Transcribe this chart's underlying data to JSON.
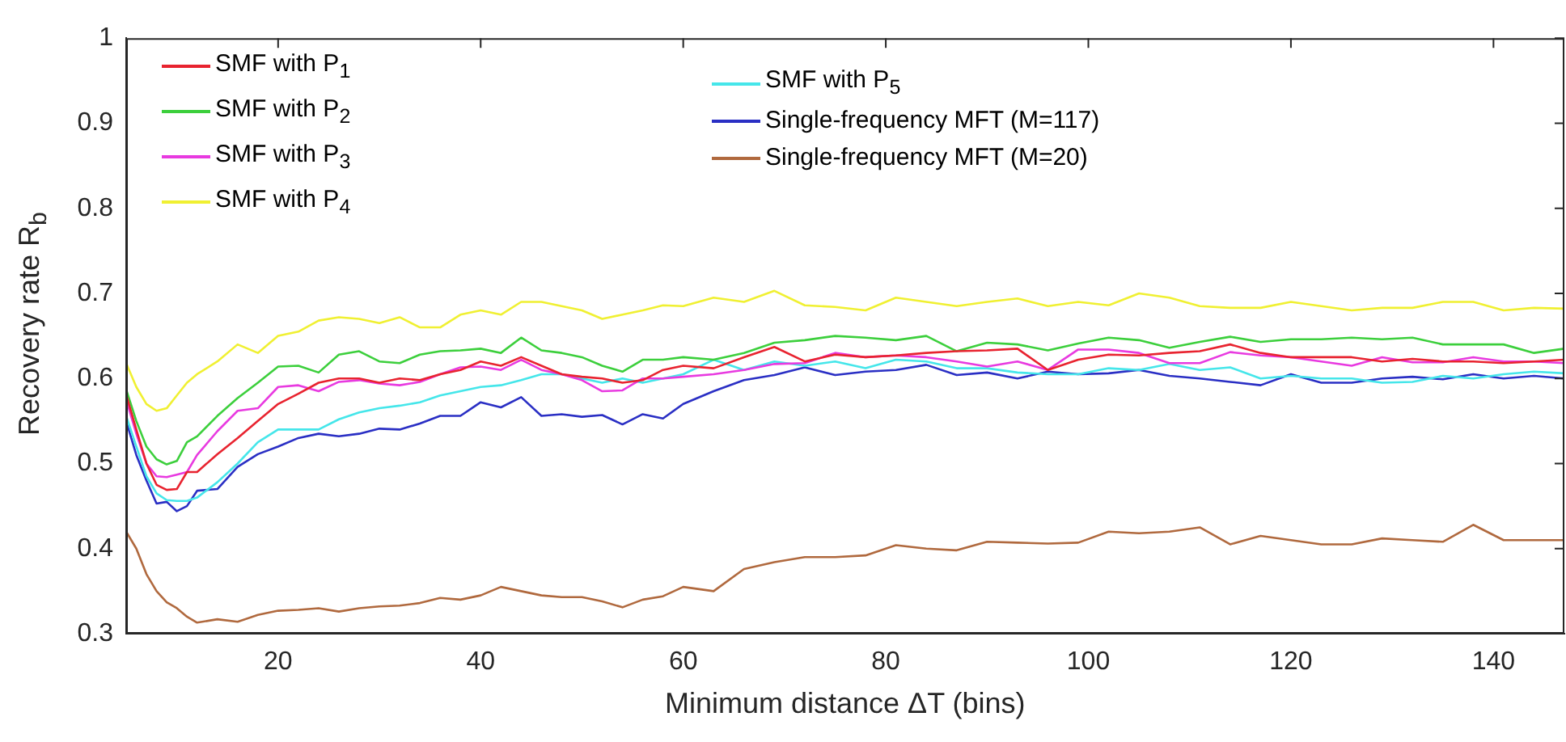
{
  "chart_data": {
    "type": "line",
    "xlabel": "Minimum distance ΔT (bins)",
    "ylabel": "Recovery rate R$_{b}$",
    "x": [
      5,
      6,
      7,
      8,
      9,
      10,
      11,
      12,
      14,
      16,
      18,
      20,
      22,
      24,
      26,
      28,
      30,
      32,
      34,
      36,
      38,
      40,
      42,
      44,
      46,
      48,
      50,
      52,
      54,
      56,
      58,
      60,
      63,
      66,
      69,
      72,
      75,
      78,
      81,
      84,
      87,
      90,
      93,
      96,
      99,
      102,
      105,
      108,
      111,
      114,
      117,
      120,
      123,
      126,
      129,
      132,
      135,
      138,
      141,
      144,
      147
    ],
    "series": [
      {
        "name": "SMF with P$_{1}$",
        "color": "#e8232f",
        "values": [
          0.581,
          0.54,
          0.5,
          0.475,
          0.469,
          0.47,
          0.49,
          0.49,
          0.511,
          0.53,
          0.55,
          0.57,
          0.582,
          0.595,
          0.6,
          0.6,
          0.595,
          0.6,
          0.598,
          0.605,
          0.61,
          0.62,
          0.615,
          0.625,
          0.615,
          0.605,
          0.602,
          0.6,
          0.595,
          0.598,
          0.61,
          0.615,
          0.612,
          0.625,
          0.637,
          0.62,
          0.628,
          0.625,
          0.627,
          0.63,
          0.632,
          0.633,
          0.635,
          0.61,
          0.622,
          0.628,
          0.627,
          0.63,
          0.632,
          0.64,
          0.63,
          0.625,
          0.625,
          0.625,
          0.62,
          0.623,
          0.62,
          0.62,
          0.618,
          0.62,
          0.622
        ]
      },
      {
        "name": "SMF with P$_{2}$",
        "color": "#3ccf3c",
        "values": [
          0.587,
          0.55,
          0.52,
          0.505,
          0.499,
          0.503,
          0.525,
          0.532,
          0.556,
          0.577,
          0.595,
          0.614,
          0.615,
          0.607,
          0.628,
          0.632,
          0.62,
          0.618,
          0.628,
          0.632,
          0.633,
          0.635,
          0.63,
          0.648,
          0.633,
          0.63,
          0.625,
          0.615,
          0.608,
          0.622,
          0.622,
          0.625,
          0.622,
          0.63,
          0.642,
          0.645,
          0.65,
          0.648,
          0.645,
          0.65,
          0.632,
          0.642,
          0.64,
          0.633,
          0.641,
          0.648,
          0.645,
          0.636,
          0.643,
          0.649,
          0.643,
          0.646,
          0.646,
          0.648,
          0.646,
          0.648,
          0.64,
          0.64,
          0.64,
          0.63,
          0.635
        ]
      },
      {
        "name": "SMF with P$_{3}$",
        "color": "#e83ae0",
        "values": [
          0.575,
          0.535,
          0.5,
          0.485,
          0.484,
          0.487,
          0.49,
          0.51,
          0.538,
          0.562,
          0.565,
          0.59,
          0.592,
          0.585,
          0.596,
          0.598,
          0.594,
          0.592,
          0.596,
          0.605,
          0.613,
          0.614,
          0.61,
          0.622,
          0.61,
          0.605,
          0.598,
          0.585,
          0.586,
          0.6,
          0.6,
          0.602,
          0.605,
          0.61,
          0.617,
          0.618,
          0.63,
          0.625,
          0.627,
          0.625,
          0.62,
          0.614,
          0.62,
          0.61,
          0.634,
          0.634,
          0.63,
          0.618,
          0.618,
          0.631,
          0.627,
          0.625,
          0.62,
          0.615,
          0.625,
          0.619,
          0.619,
          0.625,
          0.62,
          0.62,
          0.618
        ]
      },
      {
        "name": "SMF with P$_{4}$",
        "color": "#f0f032",
        "values": [
          0.618,
          0.59,
          0.57,
          0.562,
          0.565,
          0.58,
          0.595,
          0.605,
          0.62,
          0.64,
          0.63,
          0.65,
          0.655,
          0.668,
          0.672,
          0.67,
          0.665,
          0.672,
          0.66,
          0.66,
          0.675,
          0.68,
          0.675,
          0.69,
          0.69,
          0.685,
          0.68,
          0.67,
          0.675,
          0.68,
          0.686,
          0.685,
          0.695,
          0.69,
          0.703,
          0.686,
          0.684,
          0.68,
          0.695,
          0.69,
          0.685,
          0.69,
          0.694,
          0.685,
          0.69,
          0.686,
          0.7,
          0.695,
          0.685,
          0.683,
          0.683,
          0.69,
          0.685,
          0.68,
          0.683,
          0.683,
          0.69,
          0.69,
          0.68,
          0.683,
          0.682
        ]
      },
      {
        "name": "SMF with P$_{5}$",
        "color": "#45e6ea",
        "values": [
          0.556,
          0.52,
          0.485,
          0.465,
          0.457,
          0.456,
          0.456,
          0.46,
          0.478,
          0.5,
          0.525,
          0.54,
          0.54,
          0.54,
          0.552,
          0.56,
          0.565,
          0.568,
          0.572,
          0.58,
          0.585,
          0.59,
          0.592,
          0.598,
          0.605,
          0.605,
          0.6,
          0.595,
          0.6,
          0.595,
          0.6,
          0.605,
          0.622,
          0.61,
          0.62,
          0.615,
          0.62,
          0.612,
          0.622,
          0.62,
          0.612,
          0.612,
          0.607,
          0.605,
          0.605,
          0.612,
          0.61,
          0.617,
          0.61,
          0.613,
          0.6,
          0.603,
          0.6,
          0.6,
          0.595,
          0.596,
          0.603,
          0.6,
          0.605,
          0.608,
          0.606
        ]
      },
      {
        "name": "Single-frequency MFT (M=117)",
        "color": "#2a2fc4",
        "values": [
          0.55,
          0.51,
          0.48,
          0.453,
          0.455,
          0.444,
          0.45,
          0.468,
          0.47,
          0.496,
          0.511,
          0.52,
          0.53,
          0.535,
          0.532,
          0.535,
          0.541,
          0.54,
          0.547,
          0.556,
          0.556,
          0.572,
          0.566,
          0.578,
          0.556,
          0.558,
          0.555,
          0.557,
          0.546,
          0.558,
          0.553,
          0.57,
          0.585,
          0.598,
          0.604,
          0.613,
          0.604,
          0.608,
          0.61,
          0.616,
          0.604,
          0.607,
          0.6,
          0.608,
          0.605,
          0.606,
          0.61,
          0.603,
          0.6,
          0.596,
          0.592,
          0.605,
          0.595,
          0.595,
          0.6,
          0.602,
          0.599,
          0.605,
          0.6,
          0.603,
          0.6
        ]
      },
      {
        "name": "Single-frequency MFT (M=20)",
        "color": "#b0693e",
        "values": [
          0.42,
          0.4,
          0.37,
          0.35,
          0.337,
          0.33,
          0.32,
          0.313,
          0.317,
          0.314,
          0.322,
          0.327,
          0.328,
          0.33,
          0.326,
          0.33,
          0.332,
          0.333,
          0.336,
          0.342,
          0.34,
          0.345,
          0.355,
          0.35,
          0.345,
          0.343,
          0.343,
          0.338,
          0.331,
          0.34,
          0.344,
          0.355,
          0.35,
          0.376,
          0.384,
          0.39,
          0.39,
          0.392,
          0.404,
          0.4,
          0.398,
          0.408,
          0.407,
          0.406,
          0.407,
          0.42,
          0.418,
          0.42,
          0.425,
          0.405,
          0.415,
          0.41,
          0.405,
          0.405,
          0.412,
          0.41,
          0.408,
          0.428,
          0.41,
          0.41,
          0.41
        ]
      }
    ],
    "xlim": [
      5,
      147
    ],
    "xticks": [
      20,
      40,
      60,
      80,
      100,
      120,
      140
    ],
    "ylim": [
      0.3,
      1
    ],
    "yticks": [
      0.3,
      0.4,
      0.5,
      0.6,
      0.7,
      0.8,
      0.9,
      1
    ],
    "grid": false,
    "legend": "top left",
    "marker": "none",
    "line_style": "solid"
  }
}
